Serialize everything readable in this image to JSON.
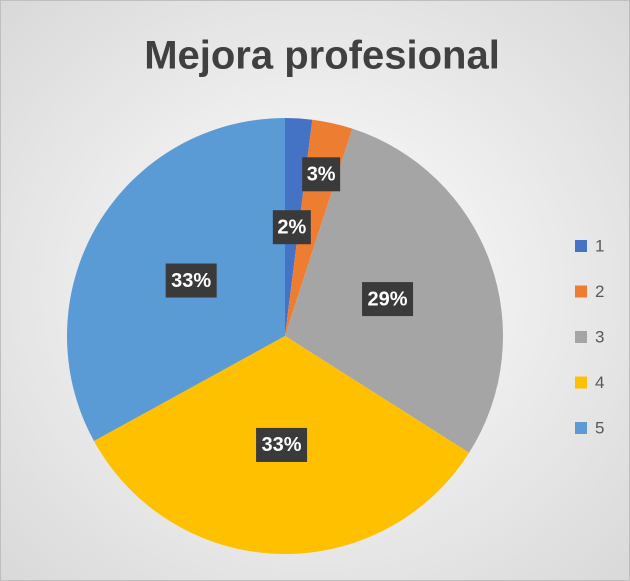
{
  "chart_data": {
    "type": "pie",
    "title": "Mejora profesional",
    "categories": [
      "1",
      "2",
      "3",
      "4",
      "5"
    ],
    "values": [
      2,
      3,
      29,
      33,
      33
    ],
    "value_labels": [
      "2%",
      "3%",
      "29%",
      "33%",
      "33%"
    ],
    "colors": [
      "#4472c4",
      "#ed7d31",
      "#a5a5a5",
      "#ffc000",
      "#5b9bd5"
    ],
    "legend": "right"
  }
}
